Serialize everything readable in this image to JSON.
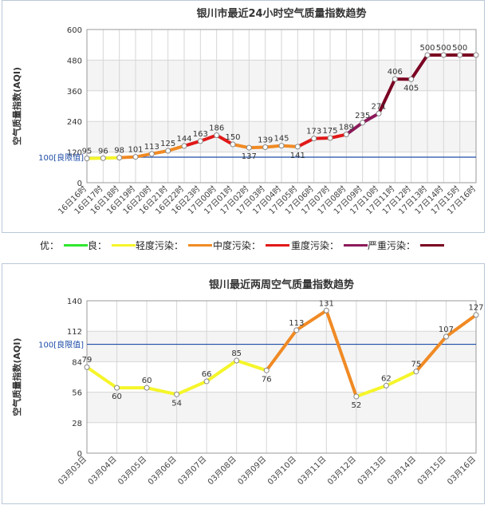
{
  "colors": {
    "good": "#2ee82e",
    "moderate": "#f5f52a",
    "light": "#f08a24",
    "medium": "#e11818",
    "heavy": "#8c1a5a",
    "severe": "#7a0022",
    "limit_line": "#1f4ea8",
    "grid": "#d6d6d6",
    "band": "#f4f4f4"
  },
  "legend": {
    "items": [
      {
        "label": "优：",
        "color": "#2ee82e"
      },
      {
        "label": "良：",
        "color": "#f5f52a"
      },
      {
        "label": "轻度污染：",
        "color": "#f08a24"
      },
      {
        "label": "中度污染：",
        "color": "#e11818"
      },
      {
        "label": "重度污染：",
        "color": "#8c1a5a"
      },
      {
        "label": "严重污染：",
        "color": "#7a0022"
      }
    ]
  },
  "chart_data": [
    {
      "type": "line",
      "title": "银川市最近24小时空气质量指数趋势",
      "ylabel": "空气质量指数(AQI)",
      "ylim": [
        0,
        600
      ],
      "yticks": [
        "0",
        "120",
        "240",
        "360",
        "480",
        "600"
      ],
      "limit_label": "100[良限值]",
      "limit_value": 100,
      "categories": [
        "16日16时",
        "16日17时",
        "16日18时",
        "16日19时",
        "16日20时",
        "16日21时",
        "16日22时",
        "16日23时",
        "17日00时",
        "17日01时",
        "17日02时",
        "17日03时",
        "17日04时",
        "17日05时",
        "17日06时",
        "17日07时",
        "17日08时",
        "17日09时",
        "17日10时",
        "17日11时",
        "17日12时",
        "17日13时",
        "17日14时",
        "17日15时",
        "17日16时"
      ],
      "values": [
        95,
        96,
        98,
        101,
        113,
        125,
        144,
        163,
        186,
        150,
        137,
        139,
        145,
        141,
        173,
        175,
        189,
        235,
        271,
        406,
        405,
        500,
        500,
        500,
        500
      ],
      "value_labels": [
        "95",
        "96",
        "98",
        "101",
        "113",
        "125",
        "144",
        "163",
        "186",
        "150",
        "137",
        "139",
        "145",
        "141",
        "173",
        "175",
        "189",
        "235",
        "271",
        "406",
        "405",
        "500",
        "500",
        "500",
        ""
      ]
    },
    {
      "type": "line",
      "title": "银川最近两周空气质量指数趋势",
      "ylabel": "空气质量指数(AQI)",
      "ylim": [
        0,
        140
      ],
      "yticks": [
        "0",
        "28",
        "56",
        "84",
        "112",
        "140"
      ],
      "limit_label": "100[良限值]",
      "limit_value": 100,
      "categories": [
        "03月03日",
        "03月04日",
        "03月05日",
        "03月06日",
        "03月07日",
        "03月08日",
        "03月09日",
        "03月10日",
        "03月11日",
        "03月12日",
        "03月13日",
        "03月14日",
        "03月15日",
        "03月16日"
      ],
      "values": [
        79,
        60,
        60,
        54,
        66,
        85,
        76,
        113,
        131,
        52,
        62,
        75,
        107,
        127
      ],
      "value_labels": [
        "79",
        "60",
        "60",
        "54",
        "66",
        "85",
        "76",
        "113",
        "131",
        "52",
        "62",
        "75",
        "107",
        "127"
      ]
    }
  ]
}
